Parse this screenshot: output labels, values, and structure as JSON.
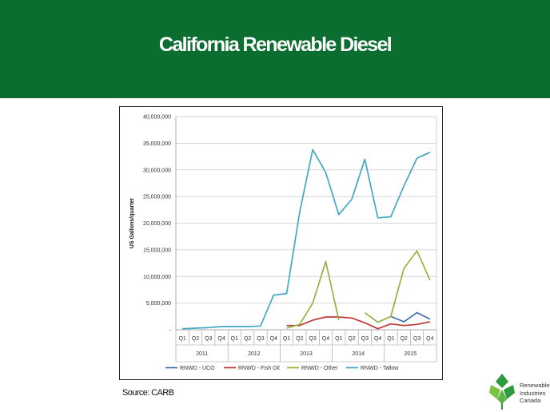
{
  "slide": {
    "title": "California Renewable Diesel",
    "source": "Source: CARB"
  },
  "logo": {
    "lines": [
      "Renewable",
      "Industries",
      "Canada"
    ]
  },
  "colors": {
    "header_bg": "#0b6d2f",
    "uco": "#3e6fb0",
    "fish_oil": "#be3b35",
    "other": "#93b340",
    "tallow": "#3fa8c5",
    "logo_green": "#2e9b3c",
    "logo_light": "#7cc242"
  },
  "chart_data": {
    "type": "line",
    "title": "",
    "ylabel": "US Gallons/quarter",
    "xlabel": "",
    "ylim": [
      0,
      40000000
    ],
    "yticks": [
      "-",
      "5,000,000",
      "10,000,000",
      "15,000,000",
      "20,000,000",
      "25,000,000",
      "30,000,000",
      "35,000,000",
      "40,000,000"
    ],
    "grid": true,
    "legend_position": "bottom",
    "categories": [
      "Q1",
      "Q2",
      "Q3",
      "Q4",
      "Q1",
      "Q2",
      "Q3",
      "Q4",
      "Q1",
      "Q2",
      "Q3",
      "Q4",
      "Q1",
      "Q2",
      "Q3",
      "Q4",
      "Q1",
      "Q2",
      "Q3",
      "Q4"
    ],
    "year_groups": [
      {
        "label": "2011",
        "span": 4
      },
      {
        "label": "2012",
        "span": 4
      },
      {
        "label": "2013",
        "span": 4
      },
      {
        "label": "2014",
        "span": 4
      },
      {
        "label": "2015",
        "span": 4
      }
    ],
    "series": [
      {
        "name": "RNWD - UCO",
        "color": "#3e6fb0",
        "values": [
          null,
          null,
          null,
          null,
          null,
          null,
          null,
          null,
          null,
          null,
          null,
          null,
          null,
          null,
          null,
          null,
          2500000,
          1500000,
          3200000,
          2000000
        ]
      },
      {
        "name": "RNWD - Fish Oil",
        "color": "#be3b35",
        "values": [
          null,
          null,
          null,
          null,
          null,
          null,
          null,
          null,
          800000,
          800000,
          1800000,
          2400000,
          2400000,
          2200000,
          1300000,
          200000,
          1100000,
          800000,
          1000000,
          1500000
        ]
      },
      {
        "name": "RNWD - Other",
        "color": "#93b340",
        "values": [
          null,
          null,
          null,
          null,
          null,
          null,
          null,
          null,
          300000,
          1000000,
          5000000,
          12800000,
          1800000,
          null,
          3200000,
          1400000,
          2500000,
          11500000,
          14800000,
          9300000
        ]
      },
      {
        "name": "RNWD - Tallow",
        "color": "#3fa8c5",
        "values": [
          200000,
          300000,
          400000,
          600000,
          600000,
          600000,
          700000,
          6500000,
          6800000,
          22000000,
          33800000,
          29500000,
          21600000,
          24500000,
          32000000,
          21000000,
          21200000,
          27000000,
          32200000,
          33300000
        ]
      }
    ]
  }
}
